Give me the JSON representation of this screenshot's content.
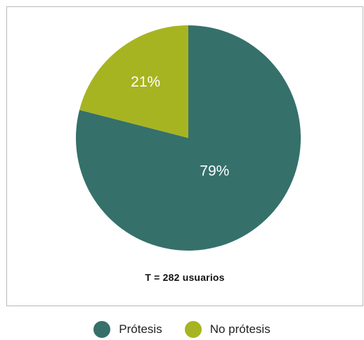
{
  "chart_data": {
    "type": "pie",
    "categories": [
      "Prótesis",
      "No prótesis"
    ],
    "values": [
      79,
      21
    ],
    "labels": [
      "79%",
      "21%"
    ],
    "colors": [
      "#35706b",
      "#a7b421"
    ],
    "annotation": "T = 282 usuarios",
    "legend_position": "bottom"
  }
}
